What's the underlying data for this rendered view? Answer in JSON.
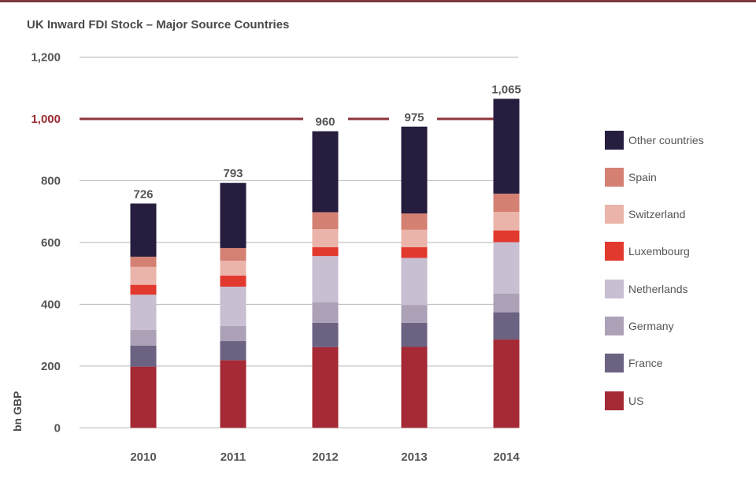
{
  "title": "UK Inward FDI Stock – Major Source Countries",
  "chart_data": {
    "type": "bar",
    "stacked": true,
    "title": "UK Inward FDI Stock – Major Source Countries",
    "xlabel": "",
    "ylabel": "bn GBP",
    "ylim": [
      0,
      1200
    ],
    "yticks": [
      0,
      200,
      400,
      600,
      800,
      1000,
      1200
    ],
    "ytick_labels": [
      "0",
      "200",
      "400",
      "600",
      "800",
      "1,000",
      "1,200"
    ],
    "highlighted_tick": "1,000",
    "reference_line": 1000,
    "grid": true,
    "legend_position": "right",
    "categories": [
      "2010",
      "2011",
      "2012",
      "2013",
      "2014"
    ],
    "totals": [
      726,
      793,
      960,
      975,
      1065
    ],
    "total_labels": [
      "726",
      "793",
      "960",
      "975",
      "1,065"
    ],
    "series": [
      {
        "name": "US",
        "color": "#a52a35",
        "values": [
          198,
          219,
          261,
          262,
          286
        ]
      },
      {
        "name": "France",
        "color": "#6c6282",
        "values": [
          68,
          62,
          79,
          78,
          88
        ]
      },
      {
        "name": "Germany",
        "color": "#aca1b7",
        "values": [
          51,
          49,
          66,
          58,
          61
        ]
      },
      {
        "name": "Netherlands",
        "color": "#c8bfd2",
        "values": [
          114,
          127,
          150,
          152,
          166
        ]
      },
      {
        "name": "Luxembourg",
        "color": "#e2392f",
        "values": [
          32,
          36,
          29,
          35,
          38
        ]
      },
      {
        "name": "Switzerland",
        "color": "#ebb4aa",
        "values": [
          58,
          48,
          58,
          56,
          60
        ]
      },
      {
        "name": "Spain",
        "color": "#d48073",
        "values": [
          33,
          41,
          55,
          53,
          59
        ]
      },
      {
        "name": "Other countries",
        "color": "#271d3f",
        "values": [
          172,
          211,
          262,
          281,
          307
        ]
      }
    ],
    "legend_order": [
      "Other countries",
      "Spain",
      "Switzerland",
      "Luxembourg",
      "Netherlands",
      "Germany",
      "France",
      "US"
    ],
    "colors": {
      "grid": "#b5b5b5",
      "reference_line": "#8c343b",
      "text": "#555555",
      "highlight_text": "#9b2b33"
    }
  }
}
